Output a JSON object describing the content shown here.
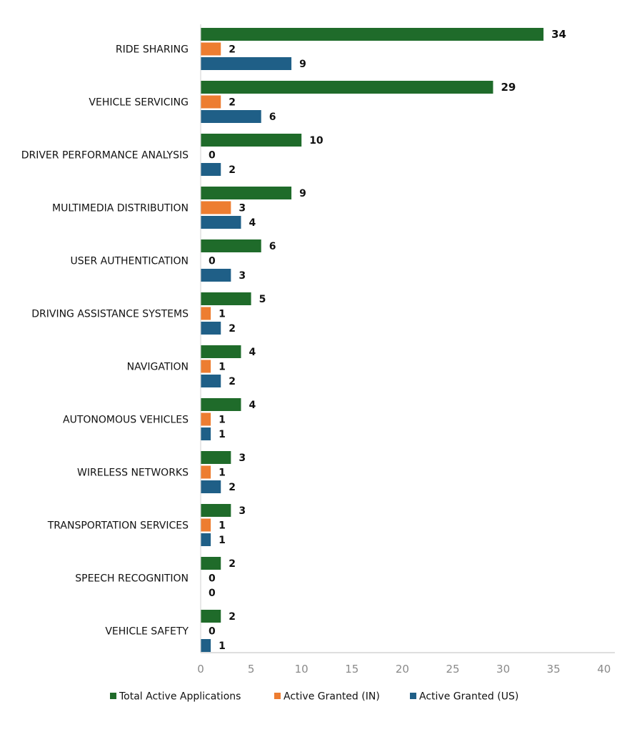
{
  "chart_data": {
    "type": "bar",
    "orientation": "horizontal",
    "title": "",
    "xlabel": "",
    "ylabel": "",
    "xlim": [
      0,
      40
    ],
    "xticks": [
      0,
      5,
      10,
      15,
      20,
      25,
      30,
      35,
      40
    ],
    "grid": false,
    "legend_position": "bottom",
    "categories": [
      "RIDE SHARING",
      "VEHICLE SERVICING",
      "DRIVER PERFORMANCE ANALYSIS",
      "MULTIMEDIA DISTRIBUTION",
      "USER AUTHENTICATION",
      "DRIVING ASSISTANCE SYSTEMS",
      "NAVIGATION",
      "AUTONOMOUS VEHICLES",
      "WIRELESS NETWORKS",
      "TRANSPORTATION SERVICES",
      "SPEECH RECOGNITION",
      "VEHICLE SAFETY"
    ],
    "series": [
      {
        "name": "Total Active Applications",
        "color": "#1f6b2a",
        "values": [
          34,
          29,
          10,
          9,
          6,
          5,
          4,
          4,
          3,
          3,
          2,
          2
        ]
      },
      {
        "name": "Active Granted (IN)",
        "color": "#ed7d31",
        "values": [
          2,
          2,
          0,
          3,
          0,
          1,
          1,
          1,
          1,
          1,
          0,
          0
        ]
      },
      {
        "name": "Active Granted (US)",
        "color": "#1f5f87",
        "values": [
          9,
          6,
          2,
          4,
          3,
          2,
          2,
          1,
          2,
          1,
          0,
          1
        ]
      }
    ]
  }
}
